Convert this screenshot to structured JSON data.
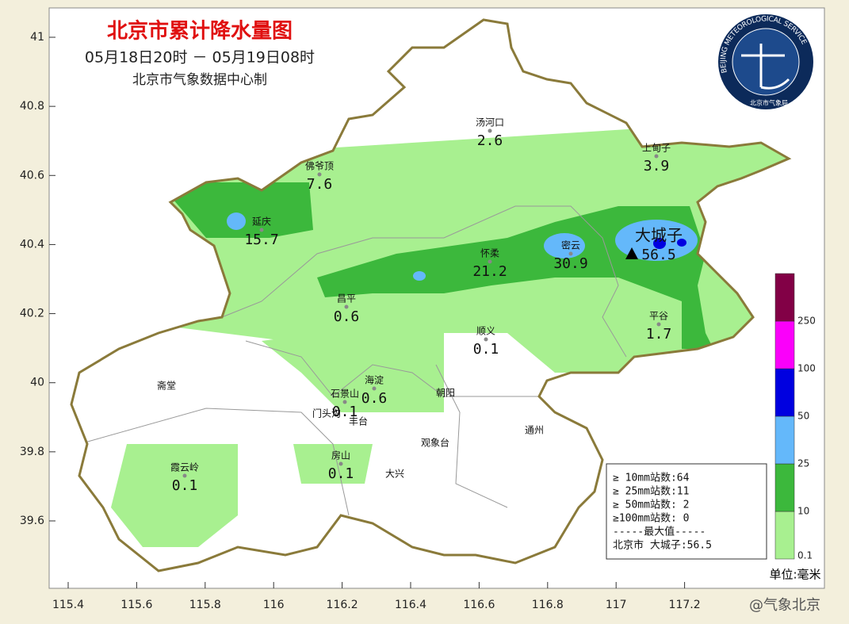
{
  "header": {
    "title": "北京市累计降水量图",
    "period": "05月18日20时 － 05月19日08时",
    "credit": "北京市气象数据中心制"
  },
  "logo": {
    "ring": "BEIJING METEOROLOGICAL SERVICE",
    "agency": "北京市气象局"
  },
  "axes": {
    "lat_ticks": [
      41,
      40.8,
      40.6,
      40.4,
      40.2,
      40,
      39.8,
      39.6
    ],
    "lon_ticks": [
      115.4,
      115.6,
      115.8,
      116,
      116.2,
      116.4,
      116.6,
      116.8,
      117,
      117.2
    ]
  },
  "stations": [
    {
      "name": "汤河口",
      "value": "2.6"
    },
    {
      "name": "上甸子",
      "value": "3.9"
    },
    {
      "name": "佛爷顶",
      "value": "7.6"
    },
    {
      "name": "延庆",
      "value": "15.7"
    },
    {
      "name": "怀柔",
      "value": "21.2"
    },
    {
      "name": "密云",
      "value": "30.9"
    },
    {
      "name": "大城子",
      "value": "56.5"
    },
    {
      "name": "昌平",
      "value": "0.6"
    },
    {
      "name": "平谷",
      "value": "1.7"
    },
    {
      "name": "顺义",
      "value": "0.1"
    },
    {
      "name": "海淀",
      "value": "0.6"
    },
    {
      "name": "石景山",
      "value": "0.1"
    },
    {
      "name": "房山",
      "value": "0.1"
    },
    {
      "name": "霞云岭",
      "value": "0.1"
    }
  ],
  "places": [
    "斋堂",
    "门头沟",
    "丰台",
    "朝阳",
    "观象台",
    "大兴",
    "通州"
  ],
  "stats": [
    "≥ 10mm站数:64",
    "≥ 25mm站数:11",
    "≥ 50mm站数: 2",
    "≥100mm站数: 0",
    "-----最大值-----",
    "北京市 大城子:56.5"
  ],
  "colorbar": {
    "ticks": [
      0.1,
      10,
      25,
      50,
      100,
      250
    ],
    "colors": [
      "#a8f090",
      "#3cb83c",
      "#64b8fa",
      "#0000e0",
      "#fa00fa",
      "#820046"
    ]
  },
  "unit": "单位:毫米",
  "watermark": "@气象北京"
}
